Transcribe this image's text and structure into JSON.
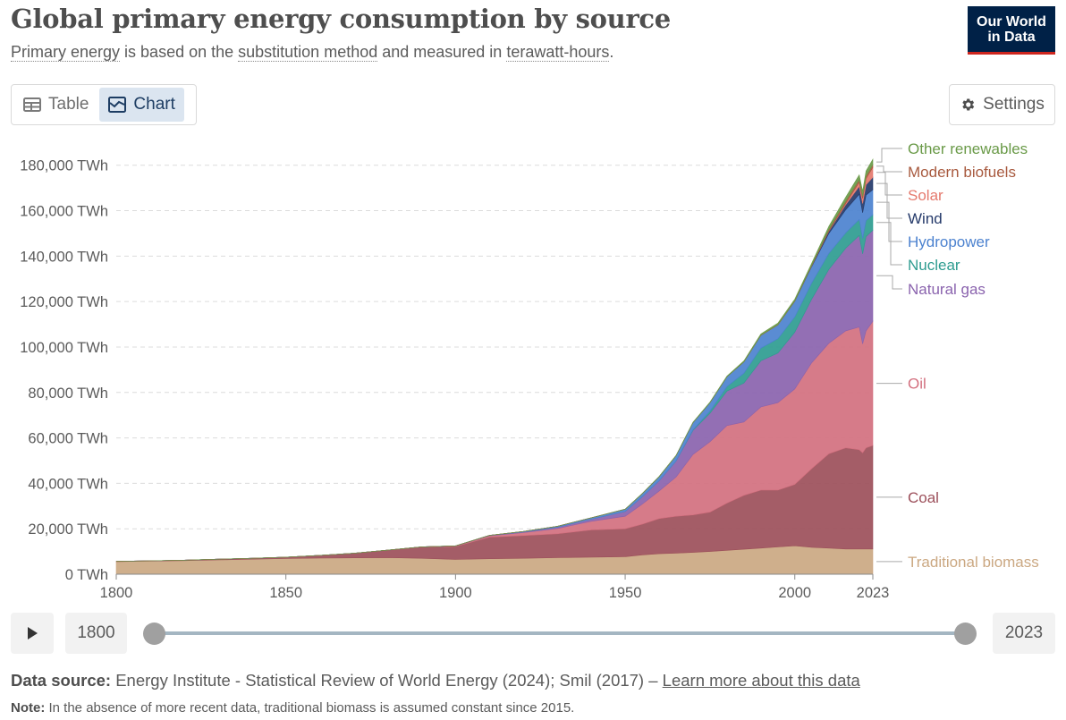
{
  "header": {
    "title": "Global primary energy consumption by source",
    "subtitle_parts": [
      "Primary energy",
      " is based on the ",
      "substitution method",
      " and measured in ",
      "terawatt-hours",
      "."
    ],
    "logo_line1": "Our World",
    "logo_line2": "in Data"
  },
  "tabs": [
    {
      "label": "Table",
      "icon": "table-icon",
      "active": false
    },
    {
      "label": "Chart",
      "icon": "chart-icon",
      "active": true
    }
  ],
  "settings_label": "Settings",
  "timeline": {
    "start_year": "1800",
    "end_year": "2023"
  },
  "footer": {
    "source_label": "Data source:",
    "source_text": "Energy Institute - Statistical Review of World Energy (2024); Smil (2017) – ",
    "source_link": "Learn more about this data",
    "note_label": "Note:",
    "note_text": "In the absence of more recent data, traditional biomass is assumed constant since 2015."
  },
  "colors": {
    "traditional_biomass": "#cba882",
    "coal": "#9c4f5a",
    "oil": "#d3707f",
    "natural_gas": "#8a63ae",
    "nuclear": "#2e9c90",
    "hydropower": "#4c82cf",
    "wind": "#253a6a",
    "solar": "#e57a6e",
    "modern_biofuels": "#a85a3f",
    "other_renewables": "#6a9a48",
    "logo_bg": "#002147",
    "logo_accent": "#ce261e"
  },
  "chart_data": {
    "type": "area",
    "stacked": true,
    "title": "Global primary energy consumption by source",
    "y_tick_labels": [
      "0 TWh",
      "20,000 TWh",
      "40,000 TWh",
      "60,000 TWh",
      "80,000 TWh",
      "100,000 TWh",
      "120,000 TWh",
      "140,000 TWh",
      "160,000 TWh",
      "180,000 TWh"
    ],
    "y_ticks": [
      0,
      20000,
      40000,
      60000,
      80000,
      100000,
      120000,
      140000,
      160000,
      180000
    ],
    "x_ticks": [
      1800,
      1850,
      1900,
      1950,
      2000,
      2023
    ],
    "xlim": [
      1800,
      2023
    ],
    "ylim": [
      0,
      185000
    ],
    "grid": "horizontal-dashed",
    "legend": "right-inline",
    "x": [
      1800,
      1810,
      1820,
      1830,
      1840,
      1850,
      1860,
      1870,
      1880,
      1890,
      1900,
      1910,
      1920,
      1930,
      1940,
      1950,
      1955,
      1960,
      1965,
      1970,
      1975,
      1980,
      1985,
      1990,
      1995,
      2000,
      2005,
      2010,
      2015,
      2019,
      2020,
      2021,
      2023
    ],
    "series": [
      {
        "name": "Traditional biomass",
        "key": "traditional_biomass",
        "values": [
          5556,
          5800,
          6000,
          6300,
          6600,
          6900,
          7100,
          7200,
          7300,
          7000,
          6500,
          6800,
          7000,
          7300,
          7500,
          7700,
          8500,
          9000,
          9300,
          9600,
          10000,
          10500,
          11000,
          11500,
          12000,
          12500,
          11800,
          11500,
          11100,
          11100,
          11100,
          11100,
          11100
        ]
      },
      {
        "name": "Coal",
        "key": "coal",
        "values": [
          97,
          120,
          180,
          300,
          400,
          600,
          1200,
          2000,
          3300,
          5000,
          5700,
          9500,
          10000,
          10500,
          12000,
          12300,
          13500,
          15500,
          16200,
          16500,
          17300,
          20800,
          23700,
          25500,
          25000,
          27000,
          34700,
          41500,
          44500,
          43700,
          42300,
          44500,
          45600
        ]
      },
      {
        "name": "Oil",
        "key": "oil",
        "values": [
          0,
          0,
          0,
          0,
          0,
          0,
          0,
          0,
          0,
          40,
          200,
          600,
          1300,
          2300,
          3800,
          5500,
          8800,
          12100,
          17300,
          26600,
          31000,
          34100,
          32300,
          36600,
          38500,
          42000,
          46600,
          48600,
          51500,
          54000,
          48000,
          51500,
          54600
        ]
      },
      {
        "name": "Natural gas",
        "key": "natural_gas",
        "values": [
          0,
          0,
          0,
          0,
          0,
          0,
          0,
          0,
          0,
          0,
          60,
          200,
          300,
          600,
          900,
          2100,
          3200,
          4500,
          7000,
          10600,
          12500,
          15200,
          17100,
          20300,
          21800,
          25000,
          28000,
          32500,
          36400,
          40300,
          39600,
          41500,
          40100
        ]
      },
      {
        "name": "Nuclear",
        "key": "nuclear",
        "values": [
          0,
          0,
          0,
          0,
          0,
          0,
          0,
          0,
          0,
          0,
          0,
          0,
          0,
          0,
          0,
          0,
          0,
          0,
          80,
          230,
          1000,
          2000,
          4300,
          5600,
          6300,
          6700,
          7100,
          7000,
          6700,
          7000,
          6700,
          7000,
          6800
        ]
      },
      {
        "name": "Hydropower",
        "key": "hydropower",
        "values": [
          0,
          0,
          0,
          0,
          0,
          0,
          0,
          0,
          0,
          0,
          0,
          0,
          200,
          400,
          650,
          1000,
          1400,
          1800,
          2300,
          3200,
          3700,
          4300,
          5000,
          5600,
          6100,
          6900,
          7300,
          8800,
          10200,
          11100,
          11400,
          11200,
          11000
        ]
      },
      {
        "name": "Wind",
        "key": "wind",
        "values": [
          0,
          0,
          0,
          0,
          0,
          0,
          0,
          0,
          0,
          0,
          0,
          0,
          0,
          0,
          0,
          0,
          0,
          0,
          0,
          0,
          0,
          0,
          0,
          10,
          20,
          80,
          270,
          900,
          2200,
          3500,
          4000,
          4600,
          5500
        ]
      },
      {
        "name": "Solar",
        "key": "solar",
        "values": [
          0,
          0,
          0,
          0,
          0,
          0,
          0,
          0,
          0,
          0,
          0,
          0,
          0,
          0,
          0,
          0,
          0,
          0,
          0,
          0,
          0,
          0,
          0,
          0,
          0,
          3,
          10,
          90,
          650,
          1800,
          2200,
          2700,
          4300
        ]
      },
      {
        "name": "Modern biofuels",
        "key": "modern_biofuels",
        "values": [
          0,
          0,
          0,
          0,
          0,
          0,
          0,
          0,
          0,
          0,
          0,
          0,
          0,
          0,
          0,
          0,
          0,
          0,
          0,
          0,
          0,
          30,
          60,
          80,
          100,
          120,
          240,
          690,
          900,
          1100,
          1050,
          1100,
          1200
        ]
      },
      {
        "name": "Other renewables",
        "key": "other_renewables",
        "values": [
          0,
          0,
          0,
          0,
          0,
          0,
          0,
          0,
          0,
          0,
          0,
          0,
          0,
          0,
          0,
          50,
          80,
          110,
          150,
          200,
          250,
          300,
          400,
          550,
          650,
          750,
          900,
          1400,
          1800,
          2100,
          2200,
          2300,
          2400
        ]
      }
    ]
  }
}
